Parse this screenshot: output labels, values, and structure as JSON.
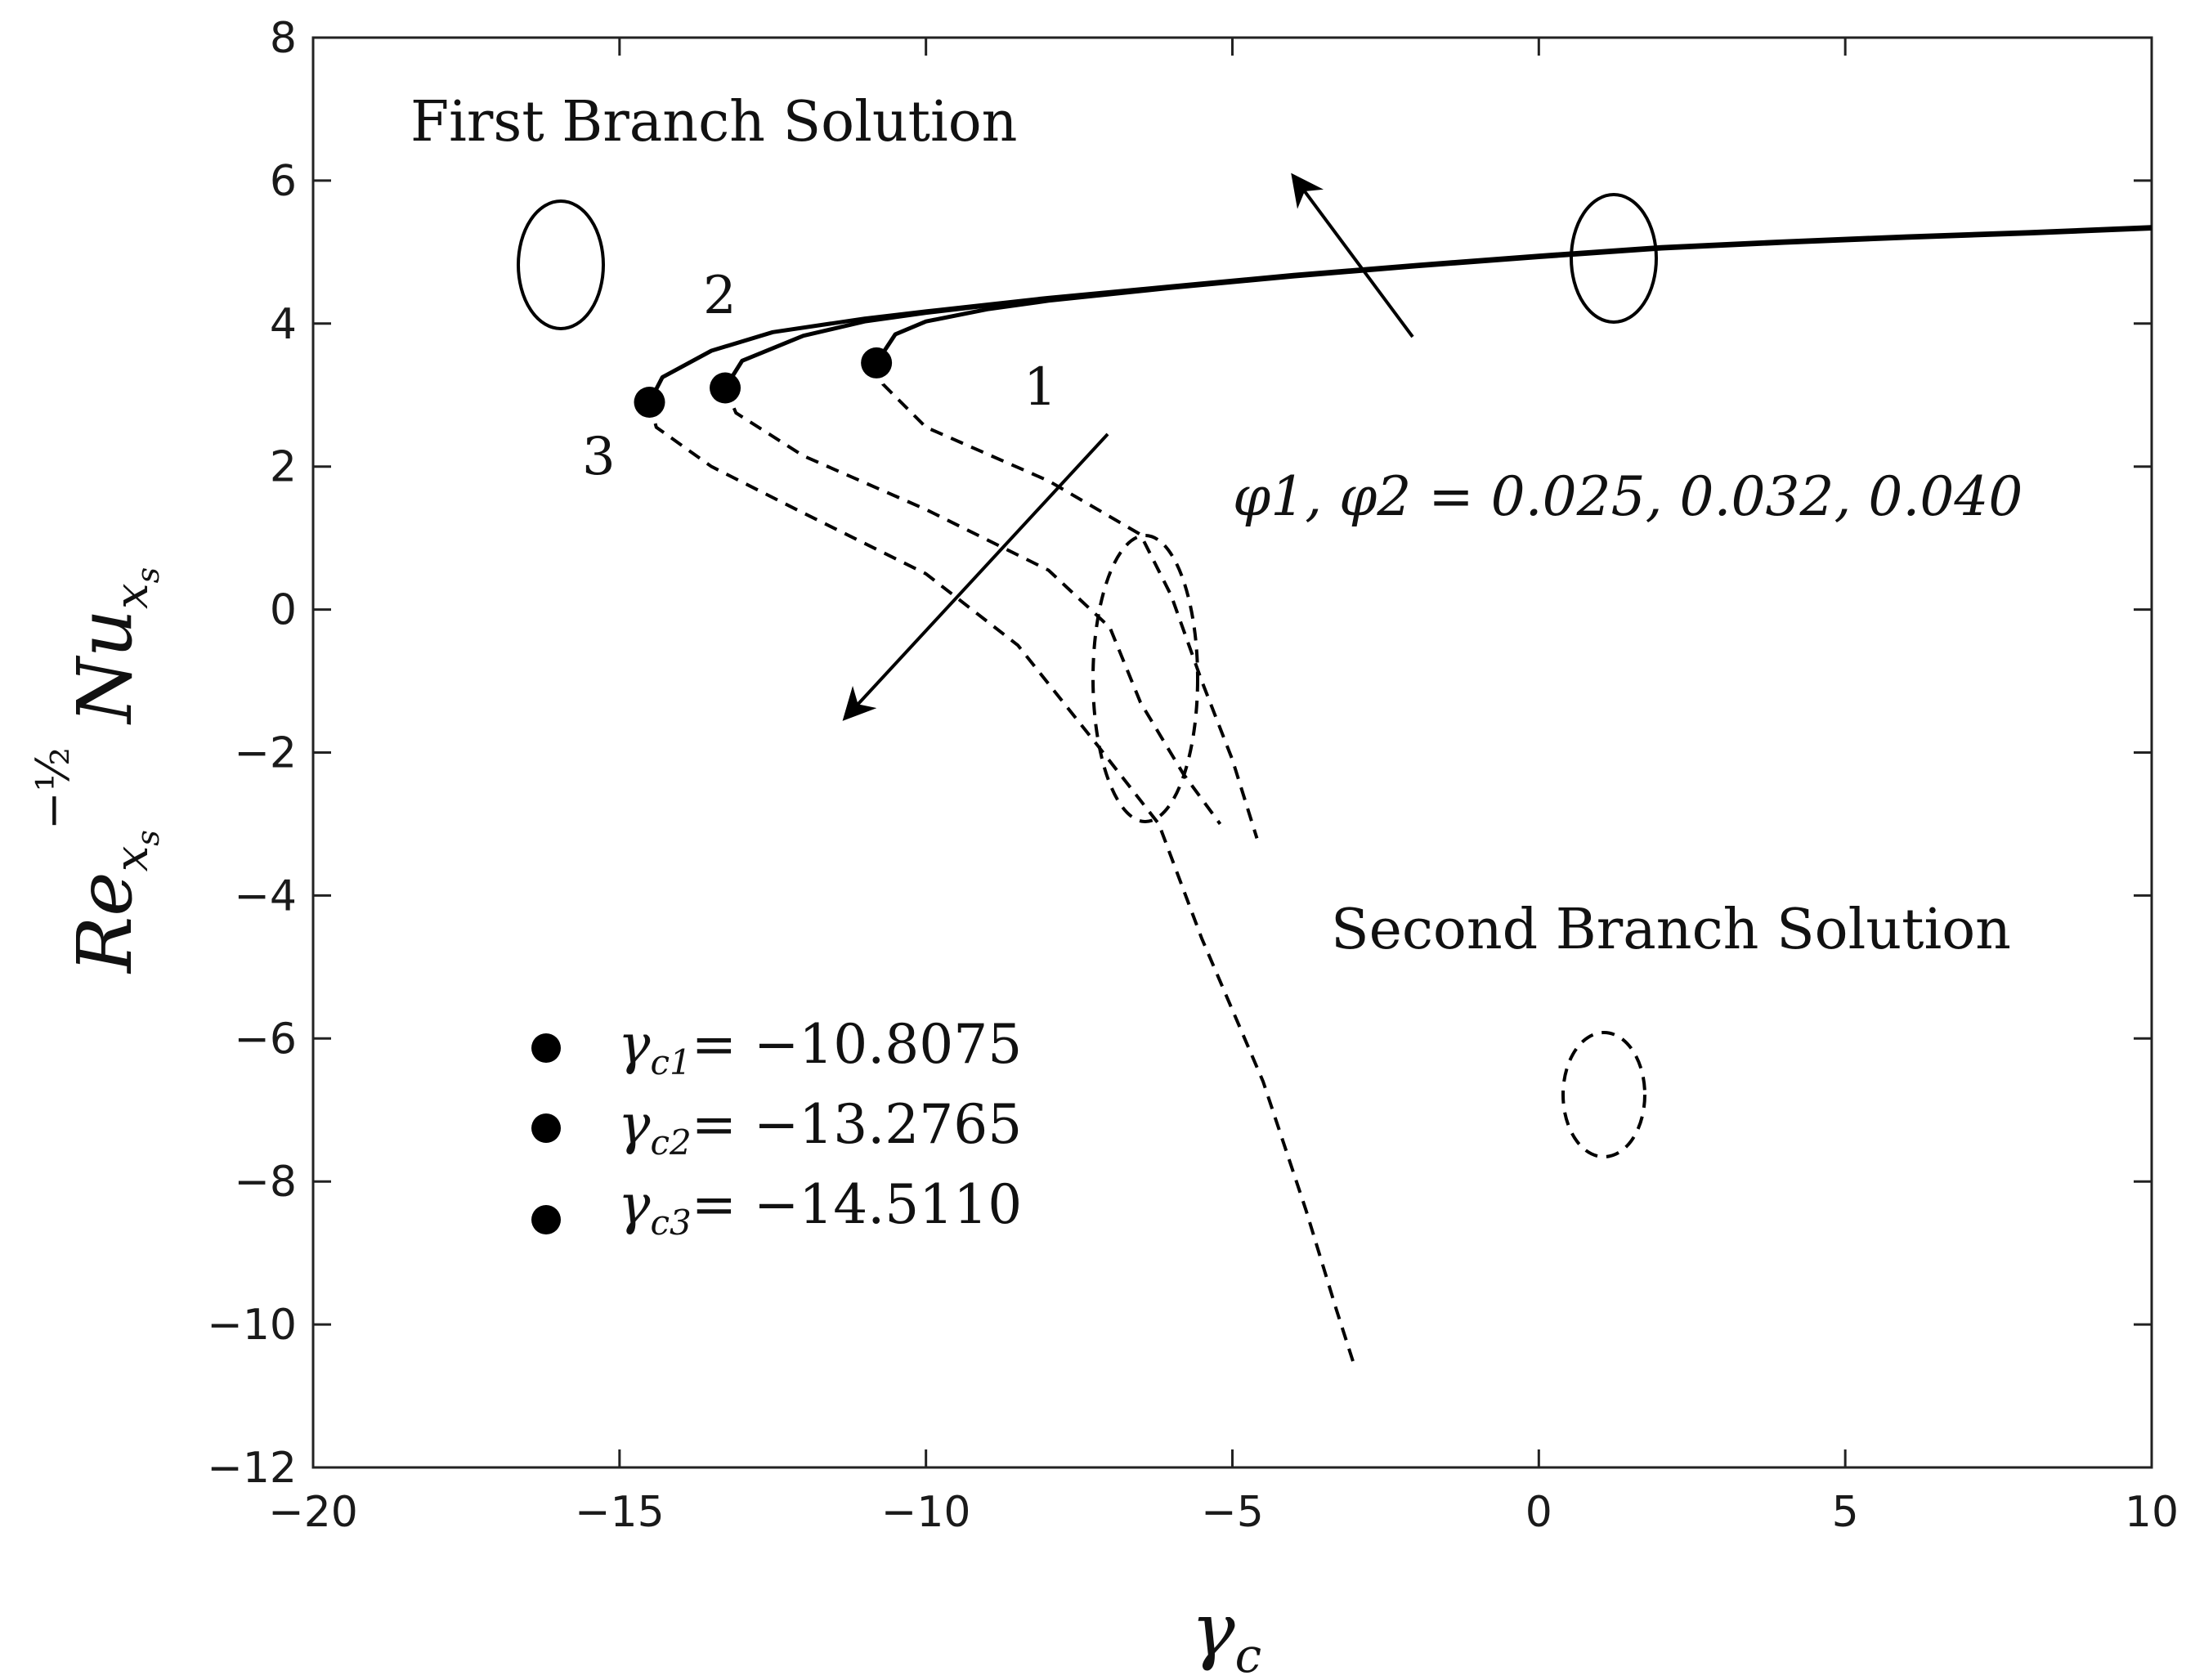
{
  "chart_data": {
    "type": "line",
    "xlabel": "γc",
    "ylabel": "Re_xs^(-1/2) Nu_xs",
    "xlim": [
      -20,
      10
    ],
    "ylim": [
      -12,
      8
    ],
    "x_ticks": [
      "−20",
      "−15",
      "−10",
      "−5",
      "0",
      "5",
      "10"
    ],
    "y_ticks": [
      "8",
      "6",
      "4",
      "2",
      "0",
      "−2",
      "−4",
      "−6",
      "−8",
      "−10",
      "−12"
    ],
    "grid": false,
    "series": [
      {
        "name": "1",
        "critical_point": [
          -10.8075,
          3.45
        ],
        "first_branch": [
          [
            -10.8075,
            3.45
          ],
          [
            -10.5,
            3.85
          ],
          [
            -10,
            4.03
          ],
          [
            -9,
            4.2
          ],
          [
            -8,
            4.32
          ],
          [
            -6,
            4.5
          ],
          [
            -4,
            4.66
          ],
          [
            -2,
            4.8
          ],
          [
            0,
            4.93
          ],
          [
            2,
            5.05
          ],
          [
            4,
            5.13
          ],
          [
            6,
            5.2
          ],
          [
            8,
            5.26
          ],
          [
            10,
            5.33
          ]
        ],
        "second_branch": [
          [
            -10.8075,
            3.45
          ],
          [
            -10.7,
            3.15
          ],
          [
            -10,
            2.55
          ],
          [
            -8,
            1.8
          ],
          [
            -6.5,
            1.05
          ],
          [
            -6,
            0.2
          ],
          [
            -5.5,
            -1.0
          ],
          [
            -5,
            -2.1
          ],
          [
            -4.6,
            -3.2
          ]
        ]
      },
      {
        "name": "2",
        "critical_point": [
          -13.2765,
          3.1
        ],
        "first_branch": [
          [
            -13.2765,
            3.1
          ],
          [
            -13,
            3.48
          ],
          [
            -12,
            3.83
          ],
          [
            -11,
            4.03
          ],
          [
            -10,
            4.15
          ],
          [
            -9,
            4.25
          ],
          [
            -8,
            4.35
          ],
          [
            -6,
            4.51
          ],
          [
            -4,
            4.67
          ],
          [
            -2,
            4.81
          ],
          [
            0,
            4.94
          ],
          [
            2,
            5.06
          ],
          [
            4,
            5.14
          ],
          [
            6,
            5.21
          ],
          [
            8,
            5.27
          ],
          [
            10,
            5.34
          ]
        ],
        "second_branch": [
          [
            -13.2765,
            3.1
          ],
          [
            -13.1,
            2.75
          ],
          [
            -12,
            2.15
          ],
          [
            -10,
            1.4
          ],
          [
            -8,
            0.55
          ],
          [
            -7,
            -0.25
          ],
          [
            -6.5,
            -1.3
          ],
          [
            -5.8,
            -2.3
          ],
          [
            -5.2,
            -3.0
          ]
        ]
      },
      {
        "name": "3",
        "critical_point": [
          -14.511,
          2.9
        ],
        "first_branch": [
          [
            -14.511,
            2.9
          ],
          [
            -14.3,
            3.25
          ],
          [
            -13.5,
            3.62
          ],
          [
            -12.5,
            3.88
          ],
          [
            -11,
            4.07
          ],
          [
            -10,
            4.17
          ],
          [
            -8,
            4.36
          ],
          [
            -6,
            4.52
          ],
          [
            -4,
            4.68
          ],
          [
            -2,
            4.82
          ],
          [
            0,
            4.95
          ],
          [
            2,
            5.07
          ],
          [
            4,
            5.15
          ],
          [
            6,
            5.22
          ],
          [
            8,
            5.28
          ],
          [
            10,
            5.35
          ]
        ],
        "second_branch": [
          [
            -14.511,
            2.9
          ],
          [
            -14.4,
            2.55
          ],
          [
            -13.5,
            2.0
          ],
          [
            -12,
            1.35
          ],
          [
            -10,
            0.5
          ],
          [
            -8.5,
            -0.5
          ],
          [
            -7.2,
            -1.9
          ],
          [
            -6.2,
            -3.0
          ],
          [
            -5.5,
            -4.6
          ],
          [
            -4.5,
            -6.6
          ],
          [
            -3.8,
            -8.4
          ],
          [
            -3.3,
            -9.8
          ],
          [
            -3.0,
            -10.6
          ]
        ]
      }
    ],
    "annotations": {
      "first_branch_label": "First Branch Solution",
      "second_branch_label": "Second Branch Solution",
      "param_label": "φ1, φ2 = 0.025, 0.032, 0.040",
      "curve_labels": [
        "1",
        "2",
        "3"
      ]
    },
    "legend": {
      "placement": "lower-left",
      "entries": [
        {
          "symbol": "γ",
          "sub": "c1",
          "value": "= −10.8075"
        },
        {
          "symbol": "γ",
          "sub": "c2",
          "value": "= −13.2765"
        },
        {
          "symbol": "γ",
          "sub": "c3",
          "value": "= −14.5110"
        }
      ]
    }
  },
  "colors": {
    "line": "#000000",
    "axis": "#222222"
  }
}
